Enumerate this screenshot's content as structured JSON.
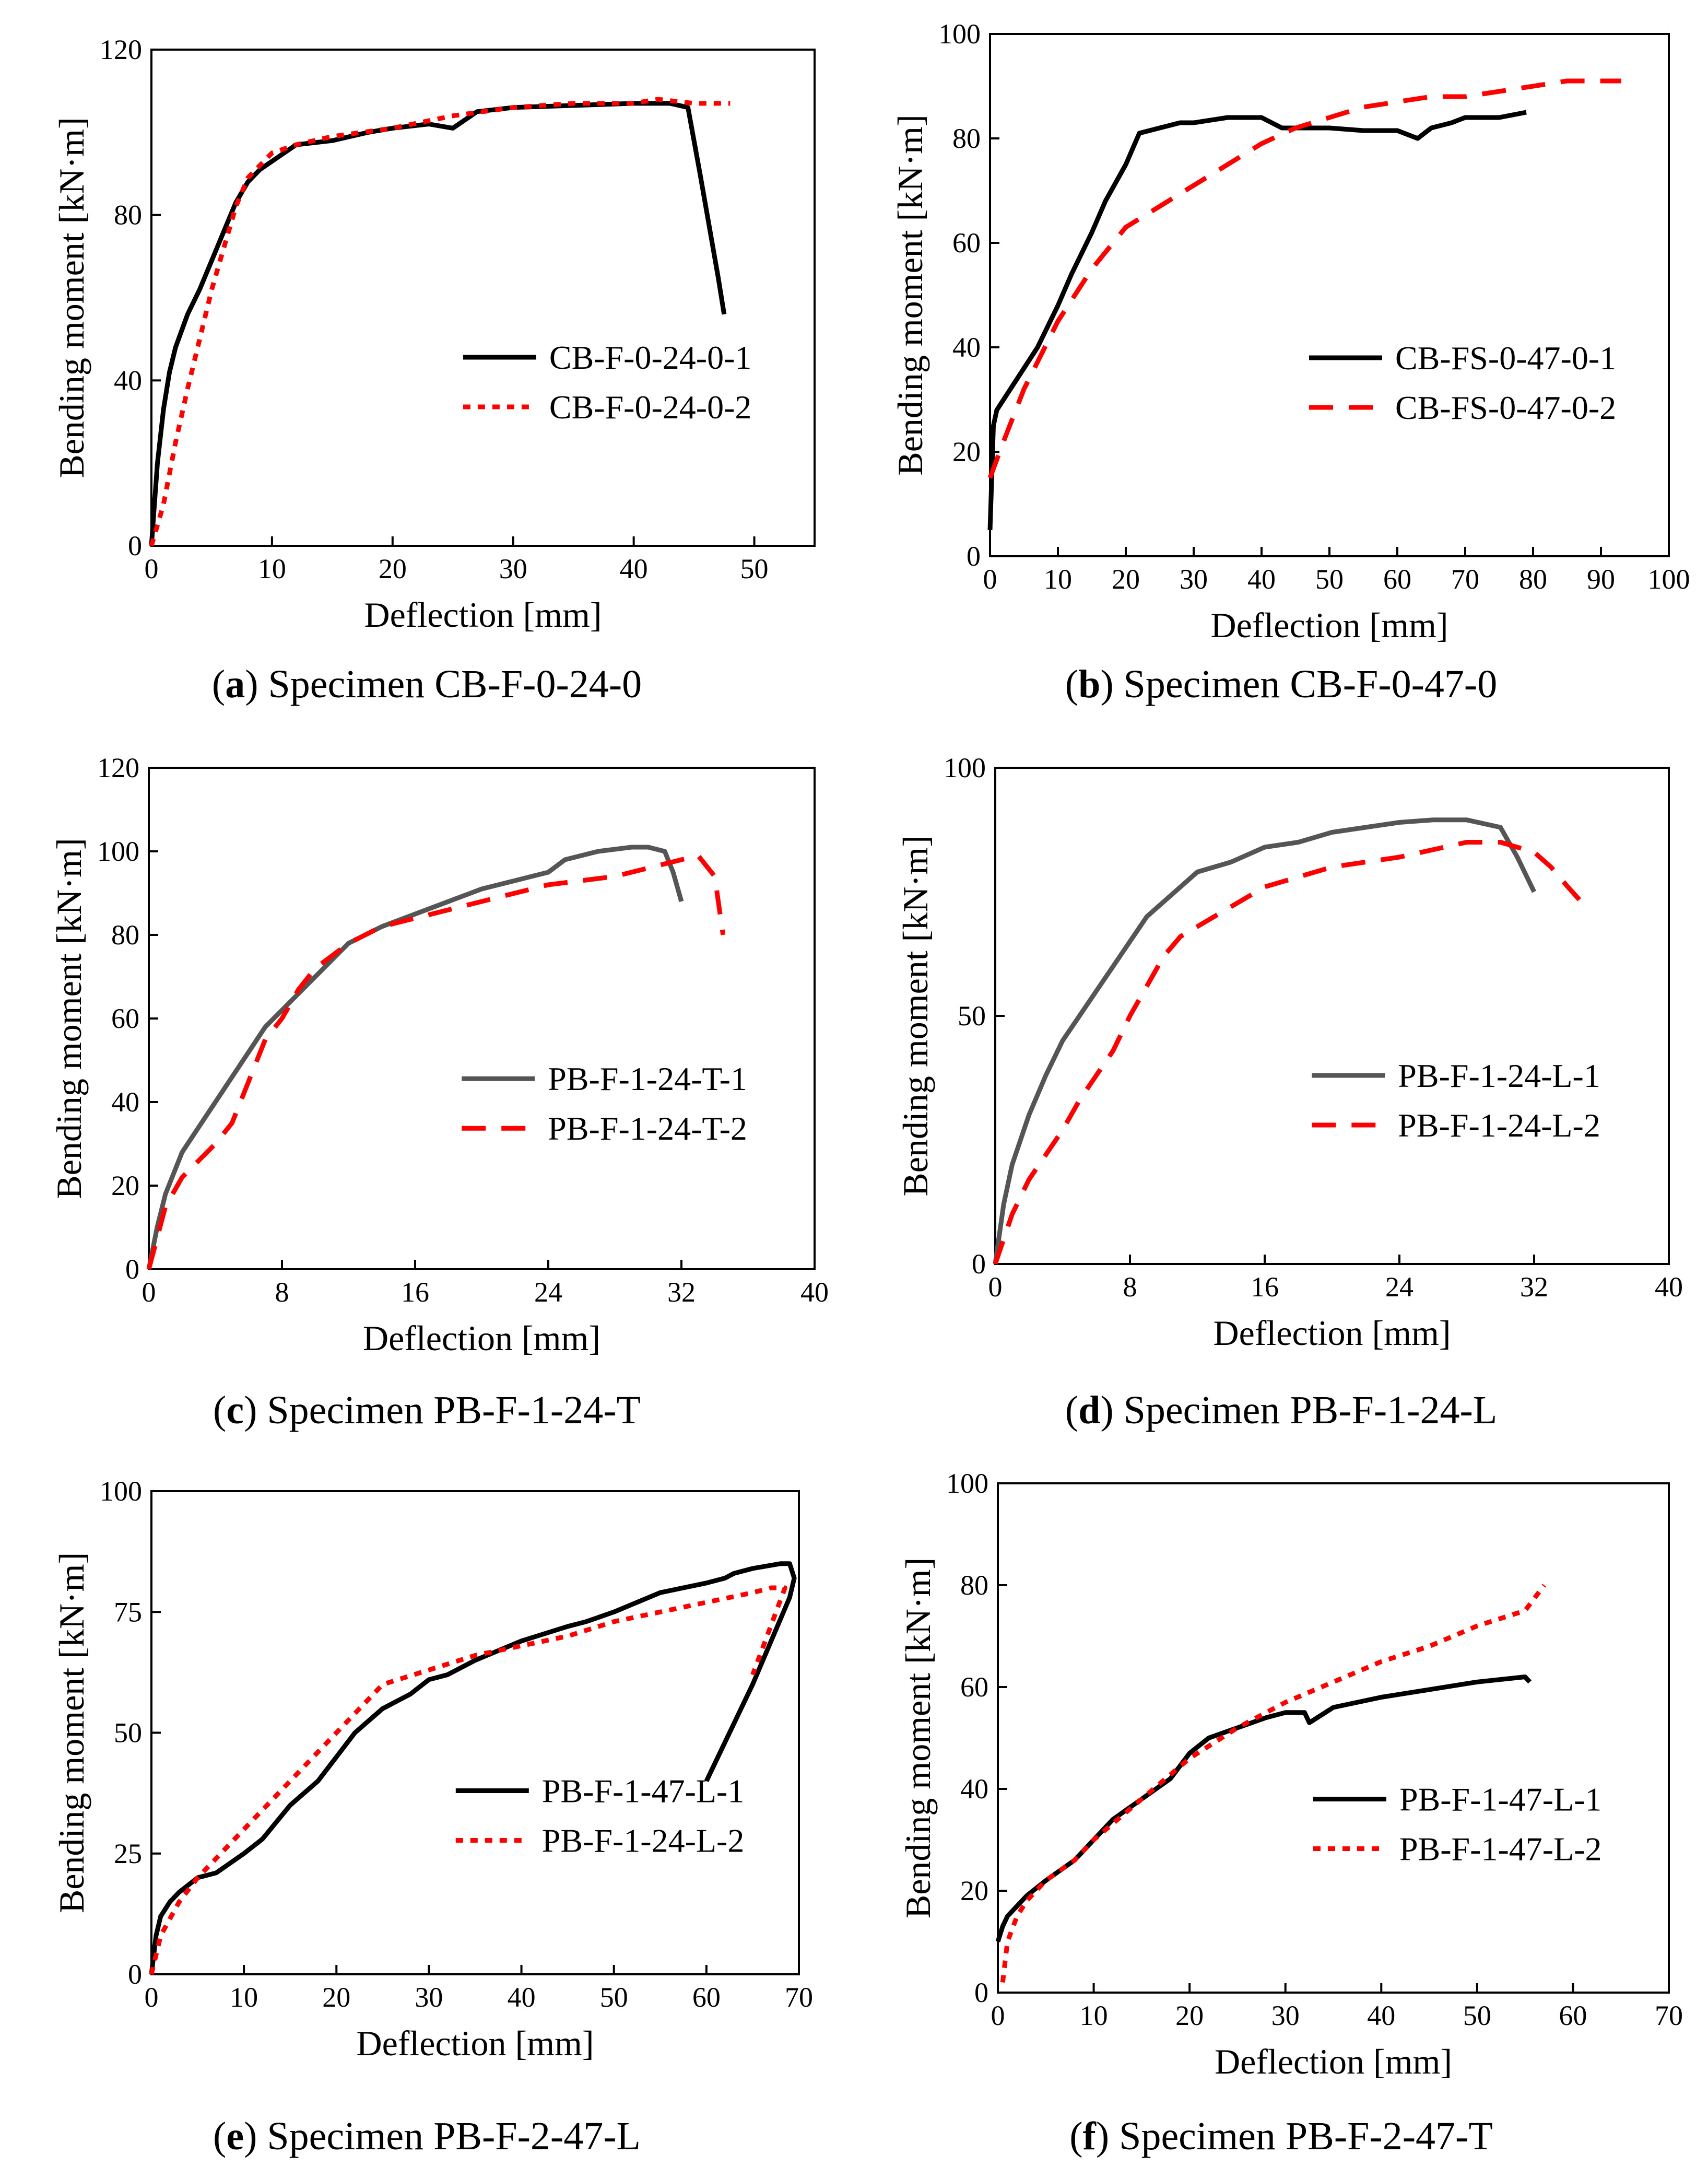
{
  "chart_data": [
    {
      "panel_letter": "a",
      "caption": "Specimen CB-F-0-24-0",
      "type": "line",
      "xlabel": "Deflection [mm]",
      "ylabel": "Bending moment [kN·m]",
      "xlim": [
        0,
        55
      ],
      "ylim": [
        0,
        120
      ],
      "xticks": [
        0,
        10,
        20,
        30,
        40,
        50
      ],
      "yticks": [
        0,
        40,
        80,
        120
      ],
      "legend_position": "center-right",
      "series": [
        {
          "name": "CB-F-0-24-0-1",
          "color": "#000000",
          "style": "solid",
          "x": [
            0,
            0.5,
            1,
            1.5,
            2,
            3,
            4,
            5,
            6,
            7,
            8,
            9,
            10,
            11,
            12,
            15,
            18,
            20,
            23,
            25,
            26,
            27,
            30,
            35,
            40,
            43,
            44.5,
            45.5,
            47,
            47.5
          ],
          "y": [
            0,
            20,
            33,
            42,
            48,
            56,
            62,
            69,
            76,
            83,
            88,
            91,
            93,
            95,
            97,
            98,
            100,
            101,
            102,
            101,
            103,
            105,
            106,
            106.5,
            107,
            107,
            106,
            90,
            65,
            56
          ]
        },
        {
          "name": "CB-F-0-24-0-2",
          "color": "#ff0000",
          "style": "dotted",
          "x": [
            0,
            1,
            2,
            3,
            4,
            5,
            6,
            7,
            8,
            9,
            10,
            12,
            15,
            20,
            25,
            30,
            35,
            40,
            42,
            45,
            48
          ],
          "y": [
            0,
            10,
            25,
            38,
            50,
            62,
            72,
            82,
            89,
            92,
            95,
            97,
            99,
            101,
            104,
            106,
            107,
            107,
            108,
            107,
            107
          ]
        }
      ]
    },
    {
      "panel_letter": "b",
      "caption": "Specimen CB-F-0-47-0",
      "type": "line",
      "xlabel": "Deflection [mm]",
      "ylabel": "Bending moment [kN·m]",
      "xlim": [
        0,
        100
      ],
      "ylim": [
        0,
        100
      ],
      "xticks": [
        0,
        10,
        20,
        30,
        40,
        50,
        60,
        70,
        80,
        90,
        100
      ],
      "yticks": [
        0,
        20,
        40,
        60,
        80,
        100
      ],
      "legend_position": "center-right",
      "series": [
        {
          "name": "CB-FS-0-47-0-1",
          "color": "#000000",
          "style": "solid",
          "x": [
            0,
            0.5,
            1,
            2,
            3,
            5,
            7,
            10,
            12,
            15,
            17,
            20,
            22,
            25,
            28,
            30,
            35,
            40,
            43,
            45,
            50,
            55,
            60,
            63,
            65,
            68,
            70,
            75,
            79
          ],
          "y": [
            5,
            25,
            28,
            30,
            32,
            36,
            40,
            48,
            54,
            62,
            68,
            75,
            81,
            82,
            83,
            83,
            84,
            84,
            82,
            82,
            82,
            81.5,
            81.5,
            80,
            82,
            83,
            84,
            84,
            85
          ]
        },
        {
          "name": "CB-FS-0-47-0-2",
          "color": "#ff0000",
          "style": "dashed",
          "x": [
            0,
            2,
            5,
            10,
            15,
            20,
            25,
            30,
            35,
            40,
            45,
            50,
            55,
            60,
            65,
            70,
            75,
            80,
            85,
            90,
            93
          ],
          "y": [
            15,
            22,
            32,
            45,
            55,
            63,
            67,
            71,
            75,
            79,
            82,
            84,
            86,
            87,
            88,
            88,
            89,
            90,
            91,
            91,
            91
          ]
        }
      ]
    },
    {
      "panel_letter": "c",
      "caption": "Specimen PB-F-1-24-T",
      "type": "line",
      "xlabel": "Deflection [mm]",
      "ylabel": "Bending moment [kN·m]",
      "xlim": [
        0,
        40
      ],
      "ylim": [
        0,
        120
      ],
      "xticks": [
        0,
        8,
        16,
        24,
        32,
        40
      ],
      "yticks": [
        0,
        20,
        40,
        60,
        80,
        100,
        120
      ],
      "legend_position": "center-right",
      "series": [
        {
          "name": "PB-F-1-24-T-1",
          "color": "#555555",
          "style": "solid",
          "x": [
            0,
            0.5,
            1,
            2,
            3,
            4,
            5,
            6,
            7,
            8,
            9,
            10,
            11,
            12,
            13,
            14,
            16,
            18,
            20,
            22,
            24,
            25,
            27,
            29,
            30,
            31,
            31.5,
            32
          ],
          "y": [
            0,
            10,
            18,
            28,
            34,
            40,
            46,
            52,
            58,
            62,
            66,
            70,
            74,
            78,
            80,
            82,
            85,
            88,
            91,
            93,
            95,
            98,
            100,
            101,
            101,
            100,
            95,
            88
          ]
        },
        {
          "name": "PB-F-1-24-T-2",
          "color": "#ff0000",
          "style": "dashed",
          "x": [
            0,
            1,
            2,
            3,
            4,
            5,
            6,
            7,
            8,
            9,
            10,
            12,
            14,
            16,
            18,
            20,
            22,
            24,
            26,
            28,
            30,
            32,
            33,
            34,
            34.5
          ],
          "y": [
            0,
            15,
            22,
            26,
            30,
            35,
            45,
            55,
            60,
            67,
            72,
            78,
            82,
            84,
            86,
            88,
            90,
            92,
            93,
            94,
            96,
            98,
            99,
            94,
            80
          ]
        }
      ]
    },
    {
      "panel_letter": "d",
      "caption": "Specimen PB-F-1-24-L",
      "type": "line",
      "xlabel": "Deflection [mm]",
      "ylabel": "Bending moment [kN·m]",
      "xlim": [
        0,
        40
      ],
      "ylim": [
        0,
        100
      ],
      "xticks": [
        0,
        8,
        16,
        24,
        32,
        40
      ],
      "yticks": [
        0,
        50,
        100
      ],
      "legend_position": "center-right",
      "series": [
        {
          "name": "PB-F-1-24-L-1",
          "color": "#555555",
          "style": "solid",
          "x": [
            0,
            0.5,
            1,
            2,
            3,
            4,
            5,
            6,
            7,
            8,
            9,
            10,
            11,
            12,
            13,
            14,
            16,
            18,
            20,
            22,
            24,
            26,
            28,
            30,
            31,
            32
          ],
          "y": [
            0,
            12,
            20,
            30,
            38,
            45,
            50,
            55,
            60,
            65,
            70,
            73,
            76,
            79,
            80,
            81,
            84,
            85,
            87,
            88,
            89,
            89.5,
            89.5,
            88,
            82,
            75
          ]
        },
        {
          "name": "PB-F-1-24-L-2",
          "color": "#ff0000",
          "style": "dashed",
          "x": [
            0,
            1,
            2,
            3,
            4,
            5,
            6,
            7,
            8,
            9,
            10,
            11,
            12,
            14,
            16,
            18,
            20,
            22,
            24,
            26,
            28,
            30,
            32,
            33,
            34,
            34.8
          ],
          "y": [
            0,
            10,
            17,
            22,
            27,
            33,
            38,
            43,
            50,
            56,
            62,
            66,
            68,
            72,
            76,
            78,
            80,
            81,
            82,
            83.5,
            85,
            85,
            83,
            80,
            76,
            73
          ]
        }
      ]
    },
    {
      "panel_letter": "e",
      "caption": "Specimen PB-F-2-47-L",
      "type": "line",
      "xlabel": "Deflection [mm]",
      "ylabel": "Bending moment [kN·m]",
      "xlim": [
        0,
        70
      ],
      "ylim": [
        0,
        100
      ],
      "xticks": [
        0,
        10,
        20,
        30,
        40,
        50,
        60,
        70
      ],
      "yticks": [
        0,
        25,
        50,
        75,
        100
      ],
      "legend_position": "center-right",
      "series": [
        {
          "name": "PB-F-1-47-L-1",
          "color": "#000000",
          "style": "solid",
          "x": [
            0,
            0.5,
            1,
            2,
            3,
            5,
            7,
            10,
            12,
            15,
            18,
            20,
            22,
            25,
            28,
            30,
            32,
            35,
            40,
            45,
            47,
            50,
            55,
            60,
            62,
            63,
            65,
            68,
            69,
            69.5,
            69,
            65,
            60
          ],
          "y": [
            0,
            8,
            12,
            15,
            17,
            20,
            21,
            25,
            28,
            35,
            40,
            45,
            50,
            55,
            58,
            61,
            62,
            65,
            69,
            72,
            73,
            75,
            79,
            81,
            82,
            83,
            84,
            85,
            85,
            82,
            78,
            60,
            40
          ]
        },
        {
          "name": "PB-F-1-24-L-2",
          "color": "#ff0000",
          "style": "dotted",
          "x": [
            0,
            1,
            3,
            5,
            8,
            10,
            15,
            20,
            25,
            30,
            35,
            40,
            45,
            50,
            55,
            60,
            65,
            67,
            68.5,
            65
          ],
          "y": [
            0,
            8,
            15,
            20,
            26,
            30,
            40,
            50,
            60,
            63,
            66,
            68,
            70,
            73,
            75,
            77,
            79,
            80,
            80,
            62
          ]
        }
      ]
    },
    {
      "panel_letter": "f",
      "caption": "Specimen PB-F-2-47-T",
      "type": "line",
      "xlabel": "Deflection [mm]",
      "ylabel": "Bending moment [kN·m]",
      "xlim": [
        0,
        70
      ],
      "ylim": [
        0,
        100
      ],
      "xticks": [
        0,
        10,
        20,
        30,
        40,
        50,
        60,
        70
      ],
      "yticks": [
        0,
        20,
        40,
        60,
        80,
        100
      ],
      "legend_position": "center-right",
      "series": [
        {
          "name": "PB-F-1-47-L-1",
          "color": "#000000",
          "style": "solid",
          "x": [
            0,
            0.5,
            1,
            2,
            3,
            5,
            8,
            10,
            12,
            15,
            18,
            20,
            22,
            25,
            28,
            30,
            32,
            32.5,
            35,
            40,
            45,
            50,
            55,
            55.5
          ],
          "y": [
            10,
            13,
            15,
            17,
            19,
            22,
            26,
            30,
            34,
            38,
            42,
            47,
            50,
            52,
            54,
            55,
            55,
            53,
            56,
            58,
            59.5,
            61,
            62,
            61
          ]
        },
        {
          "name": "PB-F-1-47-L-2",
          "color": "#ff0000",
          "style": "dotted",
          "x": [
            0.5,
            1,
            2,
            3,
            5,
            8,
            10,
            15,
            20,
            25,
            30,
            35,
            40,
            45,
            50,
            55,
            57
          ],
          "y": [
            2,
            10,
            15,
            18,
            22,
            26,
            30,
            38,
            46,
            52,
            57,
            61,
            65,
            68,
            72,
            75,
            80
          ]
        }
      ]
    }
  ]
}
